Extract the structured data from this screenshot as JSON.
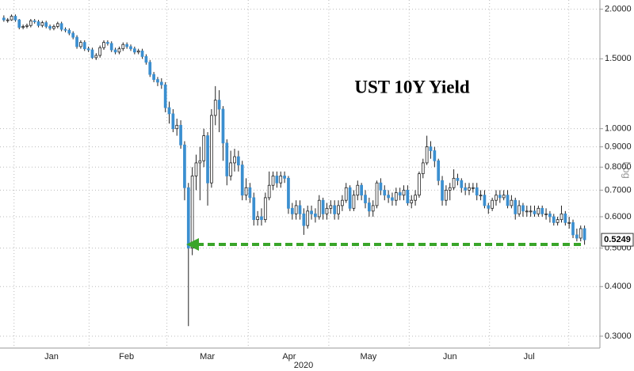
{
  "chart_data": {
    "type": "candlestick",
    "title": "UST 10Y Yield",
    "xlabel": "2020",
    "scale_note": "Log",
    "log_scale": true,
    "grid": true,
    "up_color": "#ffffff",
    "down_color": "#3b8fd0",
    "xlim": [
      -1,
      155
    ],
    "xticks": [
      {
        "value": 12.4,
        "label": "Jan"
      },
      {
        "value": 31.9,
        "label": "Feb"
      },
      {
        "value": 52.9,
        "label": "Mar"
      },
      {
        "value": 74.2,
        "label": "Apr"
      },
      {
        "value": 94.8,
        "label": "May"
      },
      {
        "value": 116,
        "label": "Jun"
      },
      {
        "value": 136.6,
        "label": "Jul"
      }
    ],
    "ylim": [
      0.28,
      2.11
    ],
    "yticks": [
      {
        "value": 2,
        "label": "2.0000"
      },
      {
        "value": 1.5,
        "label": "1.5000"
      },
      {
        "value": 1,
        "label": "1.0000"
      },
      {
        "value": 0.9,
        "label": "0.9000"
      },
      {
        "value": 0.8,
        "label": "0.8000"
      },
      {
        "value": 0.7,
        "label": "0.7000"
      },
      {
        "value": 0.6,
        "label": "0.6000"
      },
      {
        "value": 0.5,
        "label": "0.5000"
      },
      {
        "value": 0.4,
        "label": "0.4000"
      },
      {
        "value": 0.3,
        "label": "0.3000"
      }
    ],
    "open": [
      1.9,
      1.88,
      1.88,
      1.92,
      1.88,
      1.8,
      1.81,
      1.82,
      1.87,
      1.86,
      1.82,
      1.85,
      1.81,
      1.79,
      1.81,
      1.84,
      1.78,
      1.77,
      1.74,
      1.7,
      1.61,
      1.65,
      1.59,
      1.58,
      1.51,
      1.53,
      1.6,
      1.65,
      1.64,
      1.58,
      1.56,
      1.59,
      1.63,
      1.61,
      1.59,
      1.56,
      1.57,
      1.52,
      1.47,
      1.37,
      1.33,
      1.31,
      1.29,
      1.13,
      1.09,
      1.0,
      1.02,
      0.91,
      0.71,
      0.5,
      0.76,
      0.82,
      0.83,
      0.96,
      0.73,
      1.08,
      1.18,
      1.12,
      0.92,
      0.76,
      0.82,
      0.85,
      0.81,
      0.68,
      0.71,
      0.67,
      0.59,
      0.6,
      0.59,
      0.67,
      0.72,
      0.76,
      0.73,
      0.76,
      0.75,
      0.63,
      0.61,
      0.64,
      0.61,
      0.57,
      0.62,
      0.61,
      0.6,
      0.66,
      0.61,
      0.63,
      0.64,
      0.61,
      0.64,
      0.66,
      0.71,
      0.63,
      0.68,
      0.72,
      0.68,
      0.65,
      0.62,
      0.64,
      0.73,
      0.7,
      0.68,
      0.67,
      0.66,
      0.69,
      0.68,
      0.7,
      0.65,
      0.66,
      0.68,
      0.77,
      0.82,
      0.9,
      0.88,
      0.83,
      0.74,
      0.66,
      0.7,
      0.71,
      0.75,
      0.74,
      0.71,
      0.7,
      0.71,
      0.71,
      0.68,
      0.68,
      0.64,
      0.63,
      0.66,
      0.68,
      0.67,
      0.68,
      0.64,
      0.66,
      0.61,
      0.64,
      0.62,
      0.62,
      0.62,
      0.61,
      0.63,
      0.61,
      0.61,
      0.6,
      0.58,
      0.59,
      0.61,
      0.58,
      0.58,
      0.54,
      0.53,
      0.56
    ],
    "high": [
      1.93,
      1.9,
      1.94,
      1.94,
      1.89,
      1.83,
      1.84,
      1.89,
      1.89,
      1.88,
      1.87,
      1.87,
      1.83,
      1.83,
      1.86,
      1.86,
      1.8,
      1.79,
      1.76,
      1.72,
      1.67,
      1.67,
      1.61,
      1.6,
      1.55,
      1.62,
      1.67,
      1.67,
      1.66,
      1.6,
      1.61,
      1.65,
      1.65,
      1.63,
      1.61,
      1.59,
      1.59,
      1.54,
      1.49,
      1.39,
      1.35,
      1.34,
      1.31,
      1.17,
      1.12,
      1.06,
      1.05,
      0.93,
      0.73,
      0.8,
      0.86,
      0.9,
      1.0,
      0.98,
      1.12,
      1.28,
      1.25,
      1.14,
      0.94,
      0.88,
      0.89,
      0.88,
      0.83,
      0.75,
      0.73,
      0.69,
      0.62,
      0.63,
      0.69,
      0.78,
      0.78,
      0.78,
      0.78,
      0.78,
      0.76,
      0.65,
      0.66,
      0.66,
      0.63,
      0.64,
      0.64,
      0.63,
      0.68,
      0.67,
      0.65,
      0.66,
      0.66,
      0.66,
      0.68,
      0.73,
      0.72,
      0.7,
      0.74,
      0.73,
      0.7,
      0.67,
      0.66,
      0.74,
      0.75,
      0.72,
      0.7,
      0.69,
      0.71,
      0.71,
      0.72,
      0.72,
      0.68,
      0.7,
      0.78,
      0.84,
      0.96,
      0.93,
      0.9,
      0.84,
      0.76,
      0.72,
      0.73,
      0.79,
      0.77,
      0.75,
      0.73,
      0.73,
      0.73,
      0.73,
      0.7,
      0.7,
      0.65,
      0.67,
      0.7,
      0.7,
      0.7,
      0.7,
      0.68,
      0.67,
      0.66,
      0.65,
      0.64,
      0.64,
      0.64,
      0.64,
      0.64,
      0.63,
      0.62,
      0.61,
      0.6,
      0.64,
      0.62,
      0.6,
      0.59,
      0.56,
      0.57,
      0.57
    ],
    "low": [
      1.86,
      1.85,
      1.87,
      1.86,
      1.78,
      1.78,
      1.79,
      1.8,
      1.84,
      1.8,
      1.8,
      1.79,
      1.77,
      1.77,
      1.79,
      1.76,
      1.75,
      1.72,
      1.68,
      1.59,
      1.59,
      1.57,
      1.56,
      1.5,
      1.49,
      1.51,
      1.58,
      1.62,
      1.56,
      1.54,
      1.54,
      1.57,
      1.59,
      1.57,
      1.54,
      1.54,
      1.5,
      1.45,
      1.35,
      1.31,
      1.28,
      1.26,
      1.1,
      1.03,
      0.98,
      0.96,
      0.89,
      0.66,
      0.318,
      0.48,
      0.7,
      0.66,
      0.8,
      0.64,
      0.71,
      1.02,
      0.98,
      0.83,
      0.72,
      0.74,
      0.78,
      0.78,
      0.66,
      0.66,
      0.65,
      0.57,
      0.57,
      0.57,
      0.58,
      0.66,
      0.7,
      0.71,
      0.71,
      0.73,
      0.61,
      0.59,
      0.59,
      0.59,
      0.54,
      0.56,
      0.59,
      0.58,
      0.59,
      0.59,
      0.59,
      0.61,
      0.59,
      0.59,
      0.62,
      0.65,
      0.62,
      0.62,
      0.66,
      0.66,
      0.63,
      0.6,
      0.6,
      0.63,
      0.68,
      0.66,
      0.65,
      0.64,
      0.64,
      0.66,
      0.66,
      0.64,
      0.63,
      0.64,
      0.67,
      0.75,
      0.81,
      0.84,
      0.8,
      0.72,
      0.64,
      0.64,
      0.66,
      0.7,
      0.72,
      0.69,
      0.68,
      0.68,
      0.69,
      0.66,
      0.66,
      0.63,
      0.61,
      0.62,
      0.64,
      0.65,
      0.66,
      0.63,
      0.63,
      0.59,
      0.6,
      0.6,
      0.6,
      0.6,
      0.6,
      0.6,
      0.6,
      0.59,
      0.58,
      0.57,
      0.57,
      0.58,
      0.57,
      0.56,
      0.53,
      0.52,
      0.52,
      0.51
    ],
    "close": [
      1.88,
      1.88,
      1.92,
      1.88,
      1.8,
      1.81,
      1.82,
      1.87,
      1.86,
      1.82,
      1.85,
      1.81,
      1.79,
      1.81,
      1.84,
      1.78,
      1.77,
      1.74,
      1.7,
      1.61,
      1.65,
      1.59,
      1.58,
      1.51,
      1.53,
      1.6,
      1.65,
      1.64,
      1.58,
      1.56,
      1.59,
      1.63,
      1.61,
      1.59,
      1.56,
      1.57,
      1.52,
      1.47,
      1.37,
      1.33,
      1.31,
      1.29,
      1.13,
      1.09,
      1.0,
      1.02,
      0.91,
      0.71,
      0.5,
      0.76,
      0.82,
      0.83,
      0.96,
      0.73,
      1.08,
      1.18,
      1.12,
      0.92,
      0.76,
      0.82,
      0.85,
      0.81,
      0.68,
      0.71,
      0.67,
      0.59,
      0.6,
      0.59,
      0.67,
      0.72,
      0.76,
      0.73,
      0.76,
      0.75,
      0.63,
      0.61,
      0.64,
      0.61,
      0.57,
      0.62,
      0.61,
      0.6,
      0.66,
      0.61,
      0.63,
      0.64,
      0.61,
      0.64,
      0.66,
      0.71,
      0.63,
      0.68,
      0.72,
      0.68,
      0.65,
      0.62,
      0.64,
      0.73,
      0.7,
      0.68,
      0.67,
      0.66,
      0.69,
      0.68,
      0.7,
      0.65,
      0.66,
      0.68,
      0.77,
      0.82,
      0.9,
      0.88,
      0.83,
      0.74,
      0.66,
      0.7,
      0.71,
      0.75,
      0.74,
      0.71,
      0.7,
      0.71,
      0.71,
      0.68,
      0.68,
      0.64,
      0.63,
      0.66,
      0.68,
      0.67,
      0.68,
      0.64,
      0.66,
      0.61,
      0.64,
      0.62,
      0.62,
      0.62,
      0.61,
      0.63,
      0.61,
      0.61,
      0.6,
      0.58,
      0.59,
      0.61,
      0.58,
      0.58,
      0.54,
      0.53,
      0.56,
      0.5249
    ]
  }
}
